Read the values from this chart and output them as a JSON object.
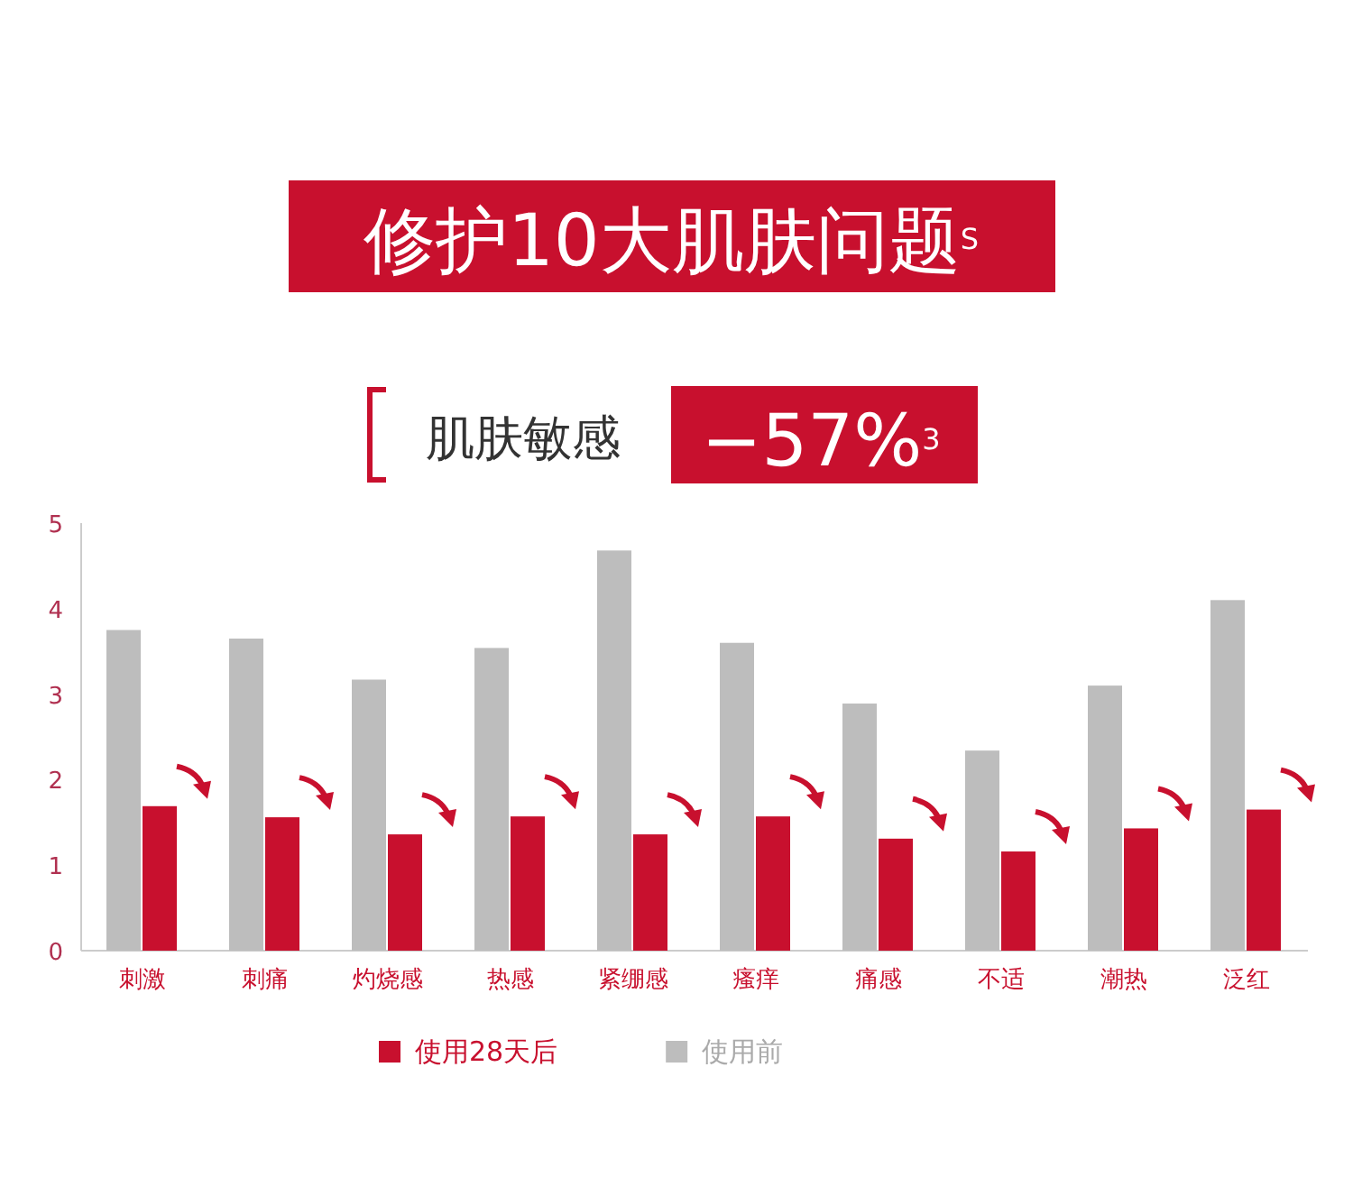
{
  "chart_data": {
    "type": "bar",
    "title": "修护10大肌肤问题$^{S}$",
    "subtitle": "肌肤敏感",
    "annotations": [
      "−57%$^{3}$"
    ],
    "categories": [
      "刺激",
      "刺痛",
      "灼烧感",
      "热感",
      "紧绷感",
      "瘙痒",
      "痛感",
      "不适",
      "潮热",
      "泛红"
    ],
    "series": [
      {
        "name": "使用前",
        "color": "#bdbdbd",
        "values": [
          3.75,
          3.65,
          3.17,
          3.54,
          4.68,
          3.6,
          2.89,
          2.34,
          3.1,
          4.1
        ]
      },
      {
        "name": "使用28天后",
        "color": "#c8102e",
        "values": [
          1.69,
          1.56,
          1.36,
          1.57,
          1.36,
          1.57,
          1.31,
          1.16,
          1.43,
          1.65
        ]
      }
    ],
    "ylim": [
      0,
      5
    ],
    "yticks": [
      0,
      1,
      2,
      3,
      4,
      5
    ],
    "legend": "bottom"
  }
}
